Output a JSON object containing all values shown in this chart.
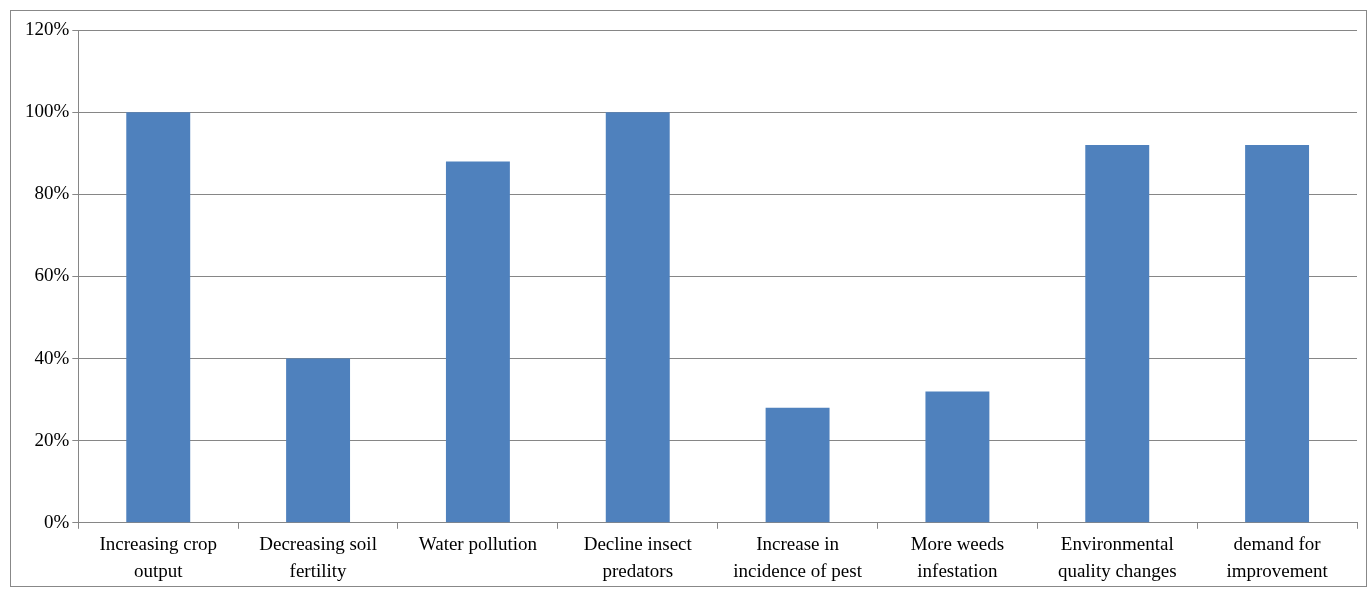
{
  "chart_data": {
    "type": "bar",
    "categories": [
      "Increasing crop output",
      "Decreasing soil fertility",
      "Water pollution",
      "Decline insect predators",
      "Increase in incidence of pest",
      "More weeds infestation",
      "Environmental quality changes",
      "demand for improvement"
    ],
    "values": [
      100,
      40,
      88,
      100,
      28,
      32,
      92,
      92
    ],
    "color": "#4f81bd",
    "ylim": [
      0,
      120
    ],
    "yticks": [
      {
        "value": 0,
        "label": "0%"
      },
      {
        "value": 20,
        "label": "20%"
      },
      {
        "value": 40,
        "label": "40%"
      },
      {
        "value": 60,
        "label": "60%"
      },
      {
        "value": 80,
        "label": "80%"
      },
      {
        "value": 100,
        "label": "100%"
      },
      {
        "value": 120,
        "label": "120%"
      }
    ],
    "grid": "y",
    "legend": false
  }
}
